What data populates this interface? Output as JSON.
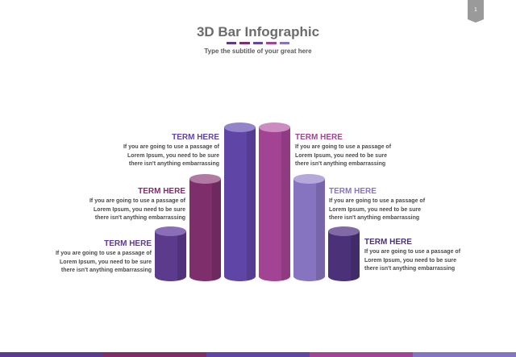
{
  "page_number": "1",
  "title": "3D Bar Infographic",
  "subtitle": "Type the subtitle of your great here",
  "colors": {
    "purple_dark": "#5c3a8c",
    "plum": "#7e2f6b",
    "indigo": "#5f45a5",
    "magenta": "#a24493",
    "lavender": "#8774c0",
    "navy_purple": "#4b3278"
  },
  "title_decoration": [
    "#5c3a8c",
    "#7e2f6b",
    "#5f45a5",
    "#a24493",
    "#8774c0"
  ],
  "footer_colors": [
    "#5c3a8c",
    "#7e2f6b",
    "#5f45a5",
    "#a24493",
    "#8774c0"
  ],
  "cylinders": [
    {
      "level": 1,
      "color": "#5c3a8c",
      "top": "#8a6fb8"
    },
    {
      "level": 2,
      "color": "#7e2f6b",
      "top": "#b07aa3"
    },
    {
      "level": 3,
      "color": "#5f45a5",
      "top": "#9384c9"
    },
    {
      "level": 3,
      "color": "#a24493",
      "top": "#cc8cc0"
    },
    {
      "level": 2,
      "color": "#8774c0",
      "top": "#b5a9dc"
    },
    {
      "level": 1,
      "color": "#4b3278",
      "top": "#7f6aa6"
    }
  ],
  "terms": [
    {
      "title": "TERM HERE",
      "color": "#5c3a8c",
      "body": "If you are going to use a passage of\nLorem Ipsum, you need to be sure\nthere isn't anything embarrassing"
    },
    {
      "title": "TERM HERE",
      "color": "#7e2f6b",
      "body": "If you are going to use a passage of\nLorem Ipsum, you need to be sure\nthere isn't anything embarrassing"
    },
    {
      "title": "TERM HERE",
      "color": "#5f45a5",
      "body": "If you are going to use a passage of\nLorem Ipsum, you need to be sure\nthere isn't anything embarrassing"
    },
    {
      "title": "TERM HERE",
      "color": "#a24493",
      "body": "If you are going to use a passage of\nLorem Ipsum, you need to be sure\nthere isn't anything embarrassing"
    },
    {
      "title": "TERM HERE",
      "color": "#8774c0",
      "body": "If you are going to use a passage of\nLorem Ipsum, you need to be sure\nthere isn't anything embarrassing"
    },
    {
      "title": "TERM HERE",
      "color": "#4b3278",
      "body": "If you are going to use a passage of\nLorem Ipsum, you need to be sure\nthere isn't anything embarrassing"
    }
  ]
}
